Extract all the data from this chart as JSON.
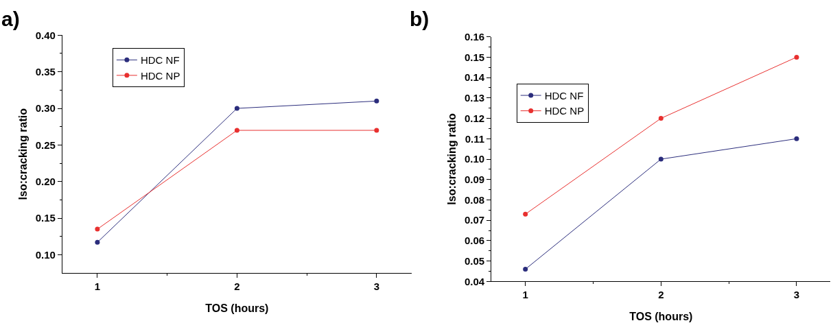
{
  "chart_data": [
    {
      "type": "line",
      "title": "a)",
      "xlabel": "TOS (hours)",
      "ylabel": "Iso:cracking ratio",
      "x": [
        1,
        2,
        3
      ],
      "xlim": [
        0.75,
        3.25
      ],
      "xticks": [
        1,
        2,
        3
      ],
      "ylim": [
        0.075,
        0.4
      ],
      "yticks": [
        {
          "value": 0.1,
          "label": "0.10"
        },
        0.15,
        {
          "value": 0.2,
          "label": "0.20"
        },
        0.25,
        {
          "value": 0.3,
          "label": "0.30"
        },
        0.35,
        {
          "value": 0.4,
          "label": "0.40"
        }
      ],
      "legend": "top left",
      "marker": "circle",
      "line_style": "solid",
      "series": [
        {
          "name": "HDC NF",
          "color": "#2b2d7c",
          "values": [
            0.117,
            0.3,
            0.31
          ]
        },
        {
          "name": "HDC NP",
          "color": "#e8302f",
          "values": [
            0.135,
            0.27,
            0.27
          ]
        }
      ]
    },
    {
      "type": "line",
      "title": "b)",
      "xlabel": "TOS (hours)",
      "ylabel": "Iso:cracking ratio",
      "x": [
        1,
        2,
        3
      ],
      "xlim": [
        0.75,
        3.25
      ],
      "xticks": [
        1,
        2,
        3
      ],
      "ylim": [
        0.04,
        0.16
      ],
      "yticks": [
        0.04,
        0.05,
        0.06,
        0.07,
        0.08,
        0.09,
        {
          "value": 0.1,
          "label": "0.10"
        },
        0.11,
        0.12,
        0.13,
        0.14,
        0.15,
        0.16
      ],
      "legend": "top left",
      "marker": "circle",
      "line_style": "solid",
      "series": [
        {
          "name": "HDC NF",
          "color": "#2b2d7c",
          "values": [
            0.046,
            0.1,
            0.11
          ]
        },
        {
          "name": "HDC NP",
          "color": "#e8302f",
          "values": [
            0.073,
            0.12,
            0.15
          ]
        }
      ]
    }
  ]
}
